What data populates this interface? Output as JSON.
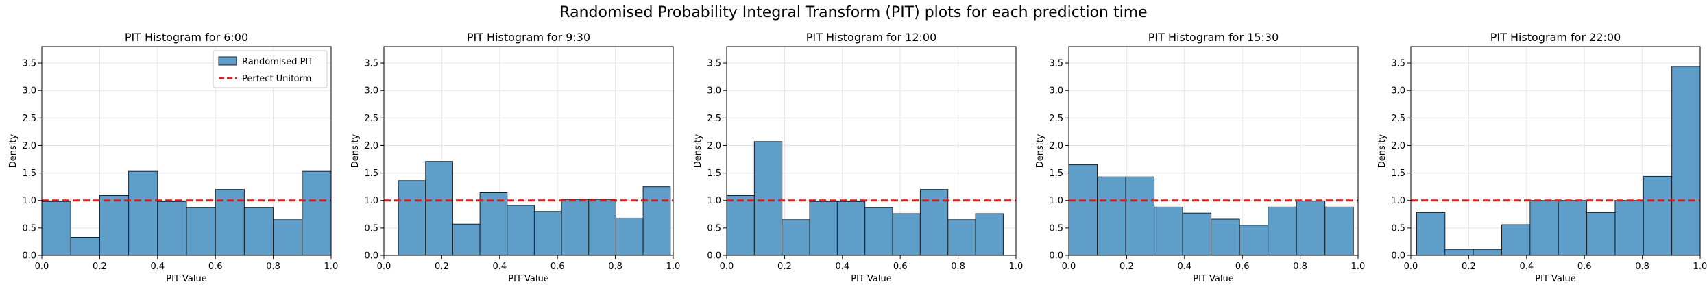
{
  "suptitle": "Randomised Probability Integral Transform (PIT) plots for each prediction time",
  "colors": {
    "bar": "#5f9ec9",
    "bar_edge": "#1f1f1f",
    "uniform_line": "#e31a1c",
    "grid": "#e3e3e3"
  },
  "chart_data": [
    {
      "type": "bar",
      "title": "PIT Histogram for 6:00",
      "xlabel": "PIT Value",
      "ylabel": "Density",
      "xlim": [
        0,
        1
      ],
      "ylim": [
        0,
        3.8
      ],
      "xticks": [
        "0.0",
        "0.2",
        "0.4",
        "0.6",
        "0.8",
        "1.0"
      ],
      "yticks": [
        "0.0",
        "0.5",
        "1.0",
        "1.5",
        "2.0",
        "2.5",
        "3.0",
        "3.5"
      ],
      "grid": true,
      "bin_edges": [
        0,
        0.1,
        0.2,
        0.3,
        0.4,
        0.5,
        0.6,
        0.7,
        0.8,
        0.9,
        1.0
      ],
      "values": [
        0.98,
        0.33,
        1.09,
        1.53,
        0.98,
        0.87,
        1.2,
        0.87,
        0.65,
        1.53
      ],
      "reference_line": 1.0,
      "legend": {
        "position": "top-right",
        "entries": [
          "Randomised PIT",
          "Perfect Uniform"
        ]
      }
    },
    {
      "type": "bar",
      "title": "PIT Histogram for 9:30",
      "xlabel": "PIT Value",
      "ylabel": "Density",
      "xlim": [
        0,
        1
      ],
      "ylim": [
        0,
        3.8
      ],
      "xticks": [
        "0.0",
        "0.2",
        "0.4",
        "0.6",
        "0.8",
        "1.0"
      ],
      "yticks": [
        "0.0",
        "0.5",
        "1.0",
        "1.5",
        "2.0",
        "2.5",
        "3.0",
        "3.5"
      ],
      "grid": true,
      "bin_edges": [
        0.05,
        0.144,
        0.238,
        0.332,
        0.426,
        0.52,
        0.614,
        0.708,
        0.802,
        0.896,
        0.99
      ],
      "values": [
        1.36,
        1.71,
        0.57,
        1.14,
        0.91,
        0.8,
        1.02,
        1.02,
        0.68,
        1.25
      ],
      "reference_line": 1.0
    },
    {
      "type": "bar",
      "title": "PIT Histogram for 12:00",
      "xlabel": "PIT Value",
      "ylabel": "Density",
      "xlim": [
        0,
        1
      ],
      "ylim": [
        0,
        3.8
      ],
      "xticks": [
        "0.0",
        "0.2",
        "0.4",
        "0.6",
        "0.8",
        "1.0"
      ],
      "yticks": [
        "0.0",
        "0.5",
        "1.0",
        "1.5",
        "2.0",
        "2.5",
        "3.0",
        "3.5"
      ],
      "grid": true,
      "bin_edges": [
        0.0,
        0.0956,
        0.1912,
        0.2868,
        0.3824,
        0.478,
        0.5736,
        0.6692,
        0.7648,
        0.8604,
        0.956
      ],
      "values": [
        1.09,
        2.07,
        0.65,
        0.98,
        0.98,
        0.87,
        0.76,
        1.2,
        0.65,
        0.76
      ],
      "reference_line": 1.0
    },
    {
      "type": "bar",
      "title": "PIT Histogram for 15:30",
      "xlabel": "PIT Value",
      "ylabel": "Density",
      "xlim": [
        0,
        1
      ],
      "ylim": [
        0,
        3.8
      ],
      "xticks": [
        "0.0",
        "0.2",
        "0.4",
        "0.6",
        "0.8",
        "1.0"
      ],
      "yticks": [
        "0.0",
        "0.5",
        "1.0",
        "1.5",
        "2.0",
        "2.5",
        "3.0",
        "3.5"
      ],
      "grid": true,
      "bin_edges": [
        0.0,
        0.0984,
        0.1968,
        0.2952,
        0.3936,
        0.492,
        0.5904,
        0.6888,
        0.7872,
        0.8856,
        0.984
      ],
      "values": [
        1.65,
        1.43,
        1.43,
        0.88,
        0.77,
        0.66,
        0.55,
        0.88,
        0.99,
        0.88
      ],
      "reference_line": 1.0
    },
    {
      "type": "bar",
      "title": "PIT Histogram for 22:00",
      "xlabel": "PIT Value",
      "ylabel": "Density",
      "xlim": [
        0,
        1
      ],
      "ylim": [
        0,
        3.8
      ],
      "xticks": [
        "0.0",
        "0.2",
        "0.4",
        "0.6",
        "0.8",
        "1.0"
      ],
      "yticks": [
        "0.0",
        "0.5",
        "1.0",
        "1.5",
        "2.0",
        "2.5",
        "3.0",
        "3.5"
      ],
      "grid": true,
      "bin_edges": [
        0.02,
        0.118,
        0.216,
        0.314,
        0.412,
        0.51,
        0.608,
        0.706,
        0.804,
        0.902,
        1.0
      ],
      "values": [
        0.78,
        0.11,
        0.11,
        0.56,
        1.0,
        1.0,
        0.78,
        1.0,
        1.44,
        3.44
      ],
      "reference_line": 1.0
    }
  ]
}
